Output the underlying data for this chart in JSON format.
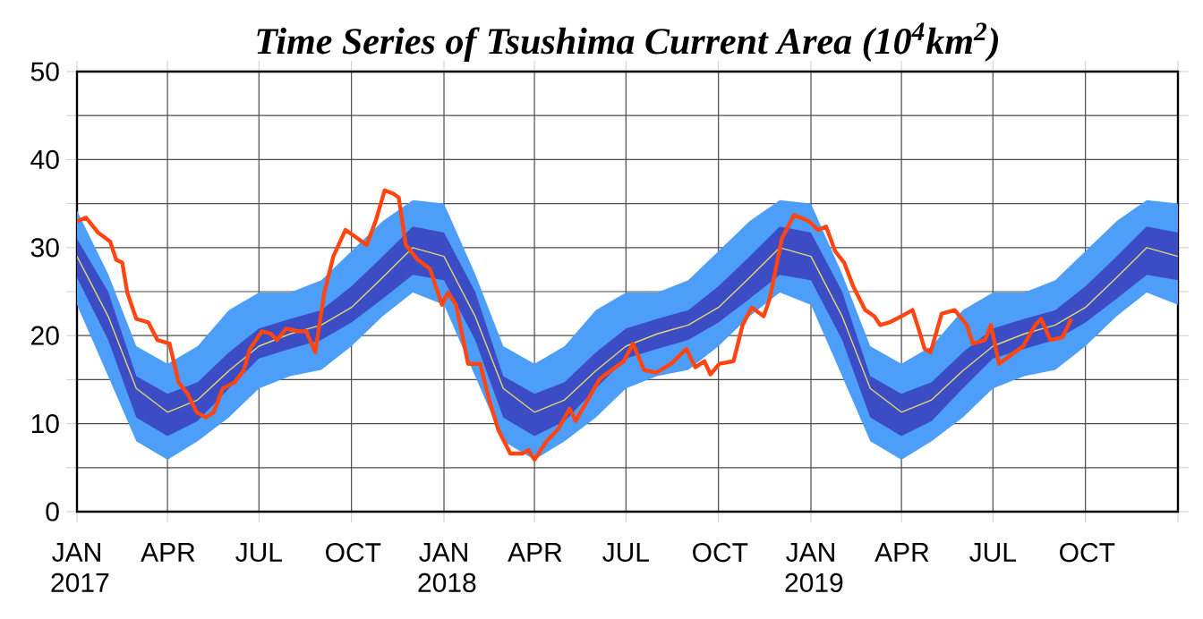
{
  "chart_data": {
    "type": "line",
    "title": "Time Series of Tsushima Current Area (10$^{4}$km$^{2}$)",
    "xlim": [
      "2017-01-01",
      "2020-01-01"
    ],
    "xticks": [
      {
        "value": "2017-01-01",
        "label": "JAN 2017"
      },
      {
        "value": "2017-04-01",
        "label": "APR"
      },
      {
        "value": "2017-07-01",
        "label": "JUL"
      },
      {
        "value": "2017-10-01",
        "label": "OCT"
      },
      {
        "value": "2018-01-01",
        "label": "JAN 2018"
      },
      {
        "value": "2018-04-01",
        "label": "APR"
      },
      {
        "value": "2018-07-01",
        "label": "JUL"
      },
      {
        "value": "2018-10-01",
        "label": "OCT"
      },
      {
        "value": "2019-01-01",
        "label": "JAN 2019"
      },
      {
        "value": "2019-04-01",
        "label": "APR"
      },
      {
        "value": "2019-07-01",
        "label": "JUL"
      },
      {
        "value": "2019-10-01",
        "label": "OCT"
      },
      {
        "value": "2020-01-01",
        "label": null
      }
    ],
    "ylim": [
      0,
      50
    ],
    "yticks": [
      0,
      {
        "value": 5,
        "label": null
      },
      10,
      {
        "value": 15,
        "label": null
      },
      20,
      {
        "value": 25,
        "label": null
      },
      30,
      {
        "value": 35,
        "label": null
      },
      40,
      {
        "value": 45,
        "label": null
      },
      50
    ],
    "grid": true,
    "x": [
      "2017-01-01",
      "2017-02-01",
      "2017-03-01",
      "2017-04-01",
      "2017-05-01",
      "2017-06-01",
      "2017-07-01",
      "2017-08-01",
      "2017-09-01",
      "2017-10-01",
      "2017-11-01",
      "2017-12-01",
      "2018-01-01",
      "2018-02-01",
      "2018-03-01",
      "2018-04-01",
      "2018-05-01",
      "2018-06-01",
      "2018-07-01",
      "2018-08-01",
      "2018-09-01",
      "2018-10-01",
      "2018-11-01",
      "2018-12-01",
      "2019-01-01",
      "2019-02-01",
      "2019-03-01",
      "2019-04-01",
      "2019-05-01",
      "2019-06-01",
      "2019-07-01",
      "2019-08-01",
      "2019-09-01",
      "2019-10-01",
      "2019-11-01",
      "2019-12-01",
      "2020-01-01"
    ],
    "series": [
      {
        "color": "#4d9ef8",
        "values": [
          null,
          null,
          null,
          null,
          null,
          null,
          null,
          null,
          null,
          null,
          null,
          null,
          null,
          null,
          null,
          null,
          null,
          null,
          null,
          null,
          null,
          null,
          null,
          null,
          null,
          null,
          null,
          null,
          null,
          null,
          null,
          null,
          null,
          null,
          null,
          null,
          null
        ],
        "upper": [
          34.2,
          27,
          18.8,
          16.8,
          18.8,
          22.9,
          24.9,
          24.9,
          26.3,
          29.6,
          33,
          35.4,
          35,
          27,
          18.8,
          16.8,
          18.8,
          22.9,
          24.9,
          24.9,
          26.3,
          29.6,
          33,
          35.4,
          35,
          27,
          18.8,
          16.8,
          18.8,
          22.9,
          24.9,
          24.9,
          26.3,
          29.6,
          33,
          35.4,
          35
        ],
        "lower": [
          23.5,
          15.4,
          8,
          5.9,
          8,
          10.7,
          14,
          15.4,
          16.1,
          18.8,
          22.2,
          24.9,
          23.5,
          15.4,
          8,
          5.9,
          8,
          10.7,
          14,
          15.4,
          16.1,
          18.8,
          22.2,
          24.9,
          23.5,
          15.4,
          8,
          5.9,
          8,
          10.7,
          14,
          15.4,
          16.1,
          18.8,
          22.2,
          24.9,
          23.5
        ]
      },
      {
        "color": "#3c4cc4",
        "values": [
          null,
          null,
          null,
          null,
          null,
          null,
          null,
          null,
          null,
          null,
          null,
          null,
          null,
          null,
          null,
          null,
          null,
          null,
          null,
          null,
          null,
          null,
          null,
          null,
          null,
          null,
          null,
          null,
          null,
          null,
          null,
          null,
          null,
          null,
          null,
          null,
          null
        ],
        "upper": [
          31,
          25,
          15.4,
          13.4,
          14.7,
          18.1,
          20.8,
          21.9,
          22.9,
          25.6,
          29,
          32.4,
          31.7,
          25,
          15.4,
          13.4,
          14.7,
          18.1,
          20.8,
          21.9,
          22.9,
          25.6,
          29,
          32.4,
          31.7,
          25,
          15.4,
          13.4,
          14.7,
          18.1,
          20.8,
          21.9,
          22.9,
          25.6,
          29,
          32.4,
          31.7
        ],
        "lower": [
          26.6,
          19.5,
          10.7,
          8.6,
          10.3,
          14,
          17.4,
          18.5,
          19.5,
          21.5,
          24.2,
          26.9,
          26.3,
          19.5,
          10.7,
          8.6,
          10.3,
          14,
          17.4,
          18.5,
          19.5,
          21.5,
          24.2,
          26.9,
          26.3,
          19.5,
          10.7,
          8.6,
          10.3,
          14,
          17.4,
          18.5,
          19.5,
          21.5,
          24.2,
          26.9,
          26.3
        ]
      },
      {
        "color": "#e0d870",
        "values": [
          29,
          22.2,
          14,
          11.3,
          12.7,
          16,
          18.8,
          20.2,
          21.2,
          23.2,
          26.6,
          30,
          29,
          22.2,
          14,
          11.3,
          12.7,
          16,
          18.8,
          20.2,
          21.2,
          23.2,
          26.6,
          30,
          29,
          22.2,
          14,
          11.3,
          12.7,
          16,
          18.8,
          20.2,
          21.2,
          23.2,
          26.6,
          30,
          29
        ]
      },
      {
        "color": "#ff4512",
        "x": [
          "2017-01-01",
          "2017-01-10",
          "2017-01-22",
          "2017-02-03",
          "2017-02-09",
          "2017-02-15",
          "2017-02-20",
          "2017-03-01",
          "2017-03-13",
          "2017-03-22",
          "2017-04-03",
          "2017-04-12",
          "2017-04-21",
          "2017-04-30",
          "2017-05-09",
          "2017-05-17",
          "2017-05-26",
          "2017-06-07",
          "2017-06-16",
          "2017-06-22",
          "2017-07-04",
          "2017-07-13",
          "2017-07-19",
          "2017-07-28",
          "2017-08-09",
          "2017-08-17",
          "2017-08-26",
          "2017-09-04",
          "2017-09-13",
          "2017-09-25",
          "2017-10-04",
          "2017-10-16",
          "2017-10-25",
          "2017-11-03",
          "2017-11-12",
          "2017-11-17",
          "2017-11-24",
          "2017-12-06",
          "2017-12-18",
          "2017-12-30",
          "2018-01-05",
          "2018-01-13",
          "2018-01-25",
          "2018-02-06",
          "2018-02-15",
          "2018-02-24",
          "2018-03-08",
          "2018-03-20",
          "2018-03-26",
          "2018-04-01",
          "2018-04-13",
          "2018-04-24",
          "2018-05-06",
          "2018-05-12",
          "2018-05-24",
          "2018-06-05",
          "2018-06-17",
          "2018-06-29",
          "2018-07-08",
          "2018-07-19",
          "2018-07-31",
          "2018-08-15",
          "2018-08-30",
          "2018-09-08",
          "2018-09-17",
          "2018-09-23",
          "2018-10-02",
          "2018-10-16",
          "2018-10-25",
          "2018-11-03",
          "2018-11-15",
          "2018-11-21",
          "2018-12-03",
          "2018-12-15",
          "2018-12-30",
          "2019-01-08",
          "2019-01-16",
          "2019-01-25",
          "2019-02-03",
          "2019-02-12",
          "2019-02-24",
          "2019-03-05",
          "2019-03-11",
          "2019-03-20",
          "2019-04-01",
          "2019-04-12",
          "2019-04-18",
          "2019-04-24",
          "2019-04-30",
          "2019-05-11",
          "2019-05-24",
          "2019-06-05",
          "2019-06-11",
          "2019-06-23",
          "2019-06-29",
          "2019-07-07",
          "2019-07-19",
          "2019-07-31",
          "2019-08-12",
          "2019-08-18",
          "2019-08-27",
          "2019-09-08",
          "2019-09-17"
        ],
        "values": [
          33,
          33.4,
          31.7,
          30.7,
          28.6,
          28.3,
          24.9,
          21.9,
          21.5,
          19.5,
          19.1,
          14.7,
          13.4,
          11.3,
          10.7,
          11.3,
          14,
          14.7,
          16.1,
          18.5,
          20.5,
          20.2,
          19.5,
          20.8,
          20.5,
          20.5,
          18.1,
          24.9,
          29,
          32,
          31.3,
          30.3,
          33,
          36.5,
          36.1,
          35.7,
          30.3,
          28.6,
          27.6,
          23.5,
          24.9,
          23.5,
          16.8,
          16.8,
          12.7,
          9.3,
          6.6,
          6.6,
          7,
          5.9,
          8,
          9.3,
          11.7,
          10.3,
          12.7,
          15.1,
          16.1,
          17.1,
          19.1,
          16.1,
          15.8,
          16.8,
          18.5,
          16.4,
          17.1,
          15.6,
          16.8,
          17.1,
          21.2,
          23.2,
          22.2,
          24.2,
          31,
          33.7,
          33,
          32,
          32.4,
          29.6,
          28.3,
          25.6,
          22.9,
          22.2,
          21.2,
          21.5,
          22.2,
          22.9,
          20.8,
          18.5,
          18.1,
          22.5,
          22.9,
          21.2,
          19.1,
          19.5,
          21.2,
          16.8,
          17.8,
          18.8,
          21.2,
          21.9,
          19.5,
          19.8,
          21.9
        ]
      }
    ]
  }
}
